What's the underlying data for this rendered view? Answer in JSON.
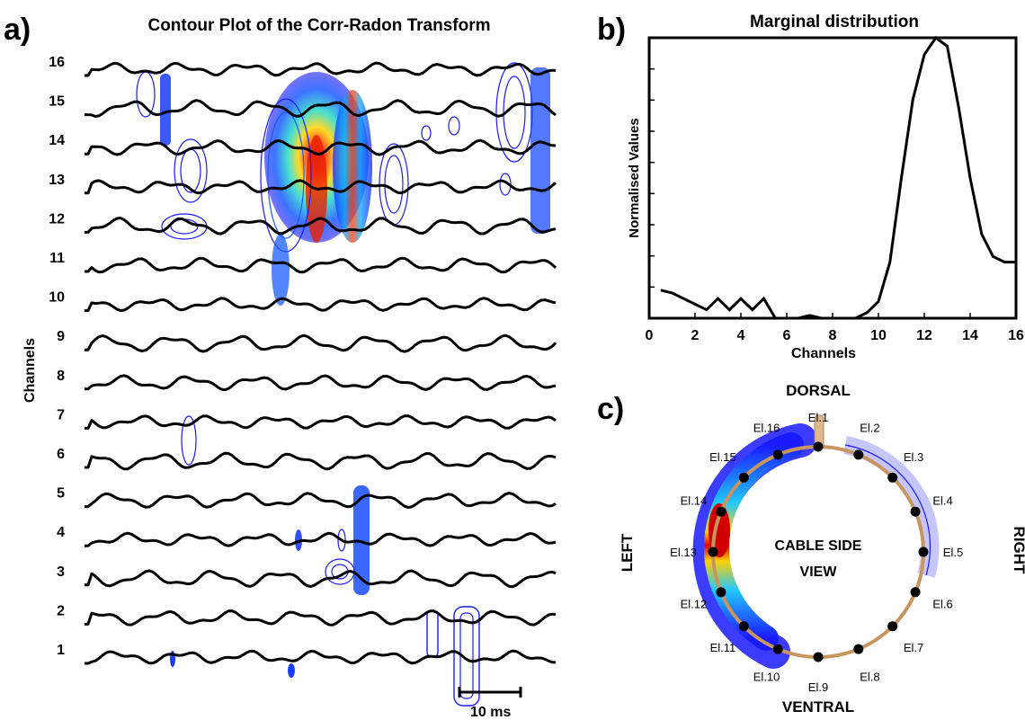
{
  "panel_a": {
    "label": "a)",
    "title": "Contour Plot of the Corr-Radon Transform",
    "ylabel": "Channels",
    "scalebar_label": "10 ms"
  },
  "panel_b": {
    "label": "b)",
    "title": "Marginal distribution",
    "xlabel": "Channels",
    "ylabel": "Normalised Values"
  },
  "panel_c": {
    "label": "c)",
    "dorsal": "DORSAL",
    "ventral": "VENTRAL",
    "left": "LEFT",
    "right": "RIGHT",
    "center_line1": "CABLE SIDE",
    "center_line2": "VIEW",
    "electrodes": [
      "El.1",
      "El.2",
      "El.3",
      "El.4",
      "El.5",
      "El.6",
      "El.7",
      "El.8",
      "El.9",
      "El.10",
      "El.11",
      "El.12",
      "El.13",
      "El.14",
      "El.15",
      "El.16"
    ]
  },
  "chart_data": [
    {
      "type": "line",
      "panel": "a",
      "title": "Contour Plot of the Corr-Radon Transform",
      "ylabel": "Channels",
      "channels": [
        "1",
        "2",
        "3",
        "4",
        "5",
        "6",
        "7",
        "8",
        "9",
        "10",
        "11",
        "12",
        "13",
        "14",
        "15",
        "16"
      ],
      "colors": {
        "trace": "#000000",
        "contour_low": "#1a1aff",
        "contour_mid": "#22d3e6",
        "contour_high": "#ff2a00"
      },
      "scale_bar": "10 ms"
    },
    {
      "type": "line",
      "panel": "b",
      "title": "Marginal distribution",
      "xlabel": "Channels",
      "ylabel": "Normalised Values",
      "xlim": [
        0,
        16
      ],
      "xticks": [
        "0",
        "2",
        "4",
        "6",
        "8",
        "10",
        "12",
        "14",
        "16"
      ],
      "series": [
        {
          "x": [
            0.5,
            1,
            1.5,
            2,
            2.5,
            3,
            3.5,
            4,
            4.5,
            5,
            5.5,
            6,
            6.5,
            7,
            7.5,
            8,
            8.5,
            9,
            9.5,
            10,
            10.5,
            11,
            11.5,
            12,
            12.5,
            13,
            13.5,
            14,
            14.5,
            15,
            15.5,
            16
          ],
          "values": [
            0.1,
            0.09,
            0.07,
            0.05,
            0.03,
            0.07,
            0.03,
            0.07,
            0.03,
            0.07,
            0.0,
            0.0,
            0.0,
            0.01,
            0.0,
            0.0,
            0.0,
            0.0,
            0.02,
            0.06,
            0.2,
            0.5,
            0.78,
            0.94,
            1.0,
            0.97,
            0.75,
            0.5,
            0.3,
            0.22,
            0.2,
            0.2
          ]
        }
      ]
    },
    {
      "type": "heatmap",
      "panel": "c",
      "electrodes": [
        "El.1",
        "El.2",
        "El.3",
        "El.4",
        "El.5",
        "El.6",
        "El.7",
        "El.8",
        "El.9",
        "El.10",
        "El.11",
        "El.12",
        "El.13",
        "El.14",
        "El.15",
        "El.16"
      ],
      "intensity": [
        0.15,
        0.2,
        0.15,
        0.12,
        0.12,
        0.0,
        0.0,
        0.0,
        0.0,
        0.0,
        0.3,
        0.6,
        0.9,
        1.0,
        0.75,
        0.4
      ]
    }
  ]
}
